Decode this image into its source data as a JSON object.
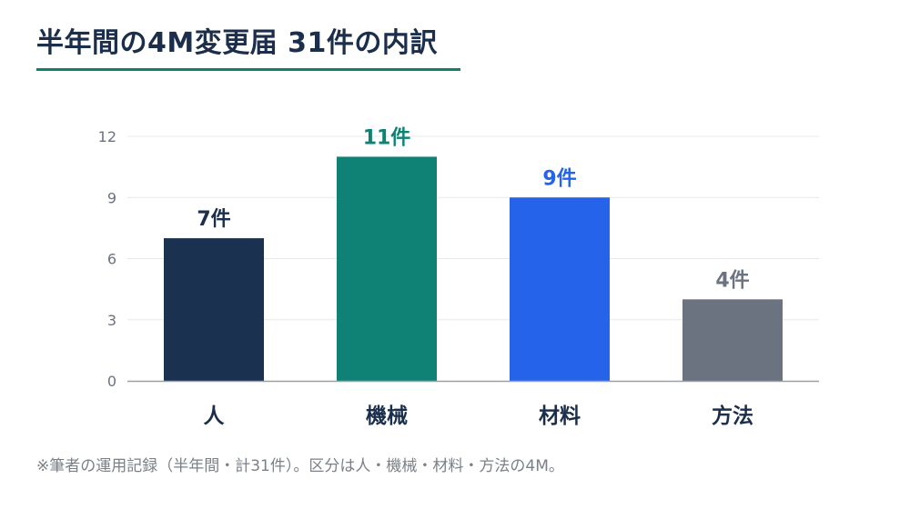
{
  "title": "半年間の4M変更届 31件の内訳",
  "note": "※筆者の運用記録（半年間・計31件）。区分は人・機械・材料・方法の4M。",
  "chart_data": {
    "type": "bar",
    "categories": [
      "人",
      "機械",
      "材料",
      "方法"
    ],
    "values": [
      7,
      11,
      9,
      4
    ],
    "data_labels": [
      "7件",
      "11件",
      "9件",
      "4件"
    ],
    "colors": [
      "#1b3150",
      "#0f8275",
      "#2563eb",
      "#6b7280"
    ],
    "ylim": [
      0,
      12
    ],
    "yticks": [
      0,
      3,
      6,
      9,
      12
    ],
    "grid": true
  }
}
